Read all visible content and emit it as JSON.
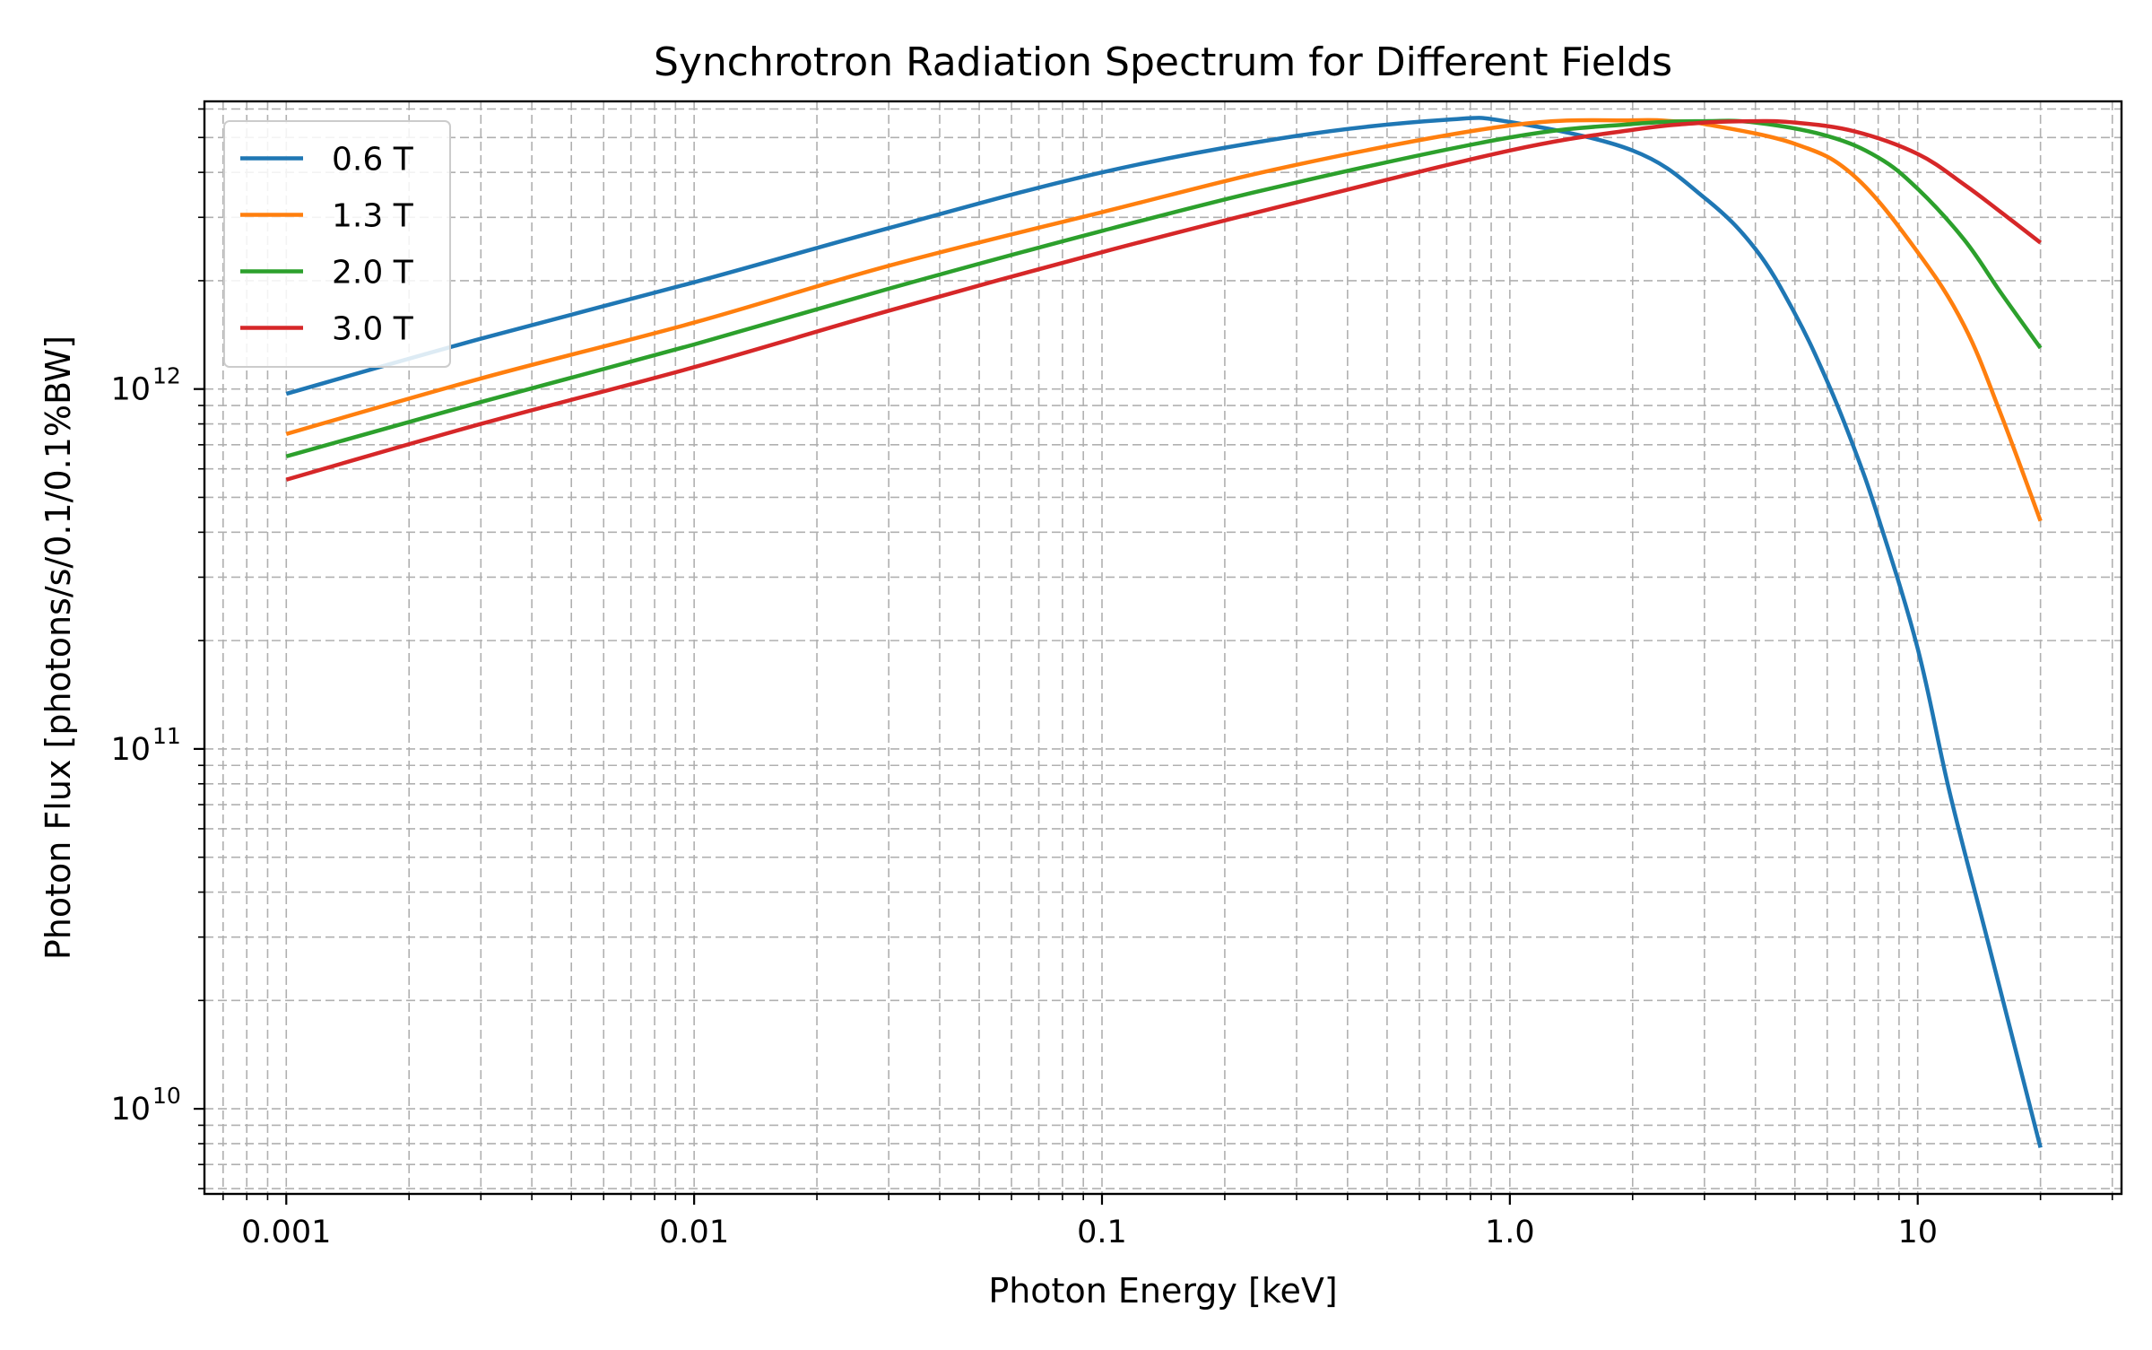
{
  "chart_data": {
    "type": "line",
    "title": "Synchrotron Radiation Spectrum for Different Fields",
    "xlabel": "Photon Energy [keV]",
    "ylabel": "Photon Flux [photons/s/0.1/0.1%BW]",
    "xscale": "log",
    "yscale": "log",
    "xlim": [
      0.00063,
      31.6
    ],
    "ylim": [
      5800000000.0,
      6300000000000.0
    ],
    "grid": true,
    "grid_style": "dashed",
    "legend_position": "top-left",
    "x_ticks": [
      {
        "value": 0.001,
        "label": "0.001"
      },
      {
        "value": 0.01,
        "label": "0.01"
      },
      {
        "value": 0.1,
        "label": "0.1"
      },
      {
        "value": 1,
        "label": "1.0"
      },
      {
        "value": 10,
        "label": "10"
      }
    ],
    "y_ticks": [
      {
        "value": 10000000000.0,
        "base": "10",
        "exp": "10"
      },
      {
        "value": 100000000000.0,
        "base": "10",
        "exp": "11"
      },
      {
        "value": 1000000000000.0,
        "base": "10",
        "exp": "12"
      }
    ],
    "series": [
      {
        "name": "0.6 T",
        "color": "#1f77b4",
        "x": [
          0.001,
          0.003,
          0.01,
          0.03,
          0.1,
          0.3,
          0.7,
          1.0,
          2.0,
          3.0,
          4.0,
          5.0,
          6.0,
          7.0,
          8.0,
          10.0,
          12.0,
          15.0,
          20.0
        ],
        "y": [
          970000000000.0,
          1380000000000.0,
          1980000000000.0,
          2800000000000.0,
          4000000000000.0,
          5050000000000.0,
          5600000000000.0,
          5520000000000.0,
          4600000000000.0,
          3400000000000.0,
          2450000000000.0,
          1620000000000.0,
          1050000000000.0,
          680000000000.0,
          440000000000.0,
          190000000000.0,
          75000000000.0,
          28000000000.0,
          7800000000.0
        ]
      },
      {
        "name": "1.3 T",
        "color": "#ff7f0e",
        "x": [
          0.001,
          0.003,
          0.01,
          0.03,
          0.1,
          0.3,
          1.0,
          2.0,
          2.5,
          3.0,
          5.0,
          7.0,
          10.0,
          13.0,
          16.0,
          20.0
        ],
        "y": [
          750000000000.0,
          1070000000000.0,
          1530000000000.0,
          2200000000000.0,
          3100000000000.0,
          4200000000000.0,
          5400000000000.0,
          5580000000000.0,
          5550000000000.0,
          5450000000000.0,
          4800000000000.0,
          3900000000000.0,
          2400000000000.0,
          1500000000000.0,
          850000000000.0,
          430000000000.0
        ]
      },
      {
        "name": "2.0 T",
        "color": "#2ca02c",
        "x": [
          0.001,
          0.003,
          0.01,
          0.03,
          0.1,
          0.3,
          1.0,
          2.0,
          3.0,
          4.0,
          6.0,
          8.0,
          10.0,
          13.0,
          16.0,
          20.0
        ],
        "y": [
          650000000000.0,
          920000000000.0,
          1330000000000.0,
          1900000000000.0,
          2750000000000.0,
          3750000000000.0,
          5000000000000.0,
          5450000000000.0,
          5550000000000.0,
          5500000000000.0,
          5050000000000.0,
          4400000000000.0,
          3600000000000.0,
          2600000000000.0,
          1850000000000.0,
          1300000000000.0
        ]
      },
      {
        "name": "3.0 T",
        "color": "#d62728",
        "x": [
          0.001,
          0.003,
          0.01,
          0.03,
          0.1,
          0.3,
          1.0,
          2.0,
          3.0,
          4.0,
          5.0,
          7.0,
          10.0,
          13.0,
          16.0,
          20.0
        ],
        "y": [
          560000000000.0,
          800000000000.0,
          1150000000000.0,
          1650000000000.0,
          2400000000000.0,
          3300000000000.0,
          4600000000000.0,
          5250000000000.0,
          5500000000000.0,
          5550000000000.0,
          5500000000000.0,
          5200000000000.0,
          4500000000000.0,
          3700000000000.0,
          3100000000000.0,
          2550000000000.0
        ]
      }
    ]
  }
}
